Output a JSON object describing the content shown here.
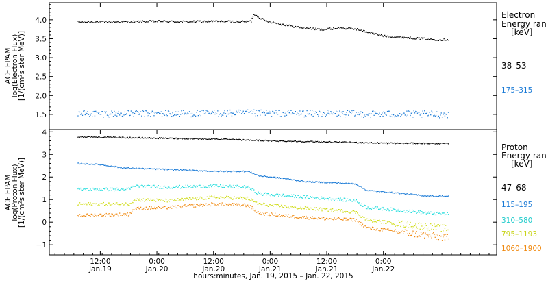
{
  "chart_data": [
    {
      "type": "scatter",
      "panel": "electron",
      "ylabel_lines": [
        "ACE EPAM",
        "log(Electron Flux)",
        "[1/(cm²s ster MeV)]"
      ],
      "ylim": [
        1.1,
        4.45
      ],
      "yticks": [
        "1.5",
        "2.0",
        "2.5",
        "3.0",
        "3.5",
        "4.0"
      ],
      "ytick_values": [
        1.5,
        2.0,
        2.5,
        3.0,
        3.5,
        4.0
      ],
      "legend_title": [
        "Electron",
        "Energy ran",
        "[keV]"
      ],
      "series": [
        {
          "name": "38–53",
          "color": "#000000",
          "x": [
            -0.2,
            0.25,
            0.5,
            0.75,
            1.0,
            1.2,
            1.33,
            1.35,
            1.45,
            1.6,
            1.75,
            1.95,
            2.1,
            2.25,
            2.5,
            2.75,
            3.0,
            3.07
          ],
          "values": [
            3.94,
            3.95,
            3.96,
            3.95,
            3.96,
            3.95,
            3.96,
            4.15,
            3.98,
            3.88,
            3.8,
            3.74,
            3.78,
            3.76,
            3.57,
            3.52,
            3.47,
            3.48
          ]
        },
        {
          "name": "175–315",
          "color": "#1a7ad6",
          "x": [
            -0.2,
            0.5,
            1.0,
            1.5,
            2.0,
            2.5,
            3.07
          ],
          "values": [
            1.52,
            1.52,
            1.53,
            1.53,
            1.52,
            1.51,
            1.5
          ]
        }
      ]
    },
    {
      "type": "scatter",
      "panel": "proton",
      "ylabel_lines": [
        "ACE EPAM",
        "log(Proton Flux)",
        "[1/(cm²s ster MeV)]"
      ],
      "ylim": [
        -1.45,
        4.1
      ],
      "yticks": [
        "−1",
        "0",
        "1",
        "2",
        "3",
        "4"
      ],
      "ytick_values": [
        -1,
        0,
        1,
        2,
        3,
        4
      ],
      "legend_title": [
        "Proton",
        "Energy ran",
        "[keV]"
      ],
      "series": [
        {
          "name": "47–68",
          "color": "#000000",
          "x": [
            -0.2,
            0.5,
            1.0,
            1.5,
            2.0,
            2.5,
            3.07
          ],
          "values": [
            3.78,
            3.72,
            3.68,
            3.6,
            3.55,
            3.5,
            3.48
          ]
        },
        {
          "name": "115–195",
          "color": "#1a7ad6",
          "x": [
            -0.2,
            0.0,
            0.2,
            0.5,
            1.0,
            1.3,
            1.4,
            1.6,
            1.8,
            2.25,
            2.35,
            2.6,
            2.9,
            3.07
          ],
          "values": [
            2.6,
            2.55,
            2.4,
            2.35,
            2.25,
            2.25,
            2.05,
            1.95,
            1.8,
            1.7,
            1.4,
            1.3,
            1.15,
            1.15
          ]
        },
        {
          "name": "310–580",
          "color": "#22dddd",
          "x": [
            -0.2,
            0.25,
            0.3,
            0.6,
            1.0,
            1.3,
            1.4,
            1.7,
            2.0,
            2.25,
            2.35,
            2.6,
            2.9,
            3.07
          ],
          "values": [
            1.45,
            1.45,
            1.6,
            1.55,
            1.6,
            1.55,
            1.25,
            1.15,
            1.05,
            0.95,
            0.65,
            0.55,
            0.4,
            0.35
          ]
        },
        {
          "name": "795–1193",
          "color": "#d0dc18",
          "x": [
            -0.2,
            0.25,
            0.3,
            0.6,
            1.0,
            1.3,
            1.4,
            1.7,
            2.0,
            2.25,
            2.35,
            2.6,
            2.9,
            3.07
          ],
          "values": [
            0.8,
            0.8,
            1.0,
            0.95,
            1.1,
            1.05,
            0.8,
            0.65,
            0.55,
            0.45,
            0.1,
            -0.05,
            -0.2,
            -0.3
          ]
        },
        {
          "name": "1060–1900",
          "color": "#f08a12",
          "x": [
            -0.2,
            0.25,
            0.3,
            0.6,
            1.0,
            1.3,
            1.4,
            1.7,
            2.0,
            2.25,
            2.35,
            2.6,
            2.9,
            3.07
          ],
          "values": [
            0.3,
            0.35,
            0.6,
            0.65,
            0.8,
            0.75,
            0.4,
            0.25,
            0.15,
            0.1,
            -0.25,
            -0.4,
            -0.6,
            -0.7
          ]
        }
      ]
    }
  ],
  "x_axis": {
    "label": "hours:minutes, Jan. 19, 2015 – Jan. 22, 2015",
    "range": [
      -0.45,
      3.5
    ],
    "ticks": [
      {
        "value": 0.0,
        "time": "12:00",
        "date": "Jan.19"
      },
      {
        "value": 0.5,
        "time": "0:00",
        "date": "Jan.20"
      },
      {
        "value": 1.0,
        "time": "12:00",
        "date": "Jan.20"
      },
      {
        "value": 1.5,
        "time": "0:00",
        "date": "Jan.21"
      },
      {
        "value": 2.0,
        "time": "12:00",
        "date": "Jan.21"
      },
      {
        "value": 2.5,
        "time": "0:00",
        "date": "Jan.22"
      }
    ]
  }
}
